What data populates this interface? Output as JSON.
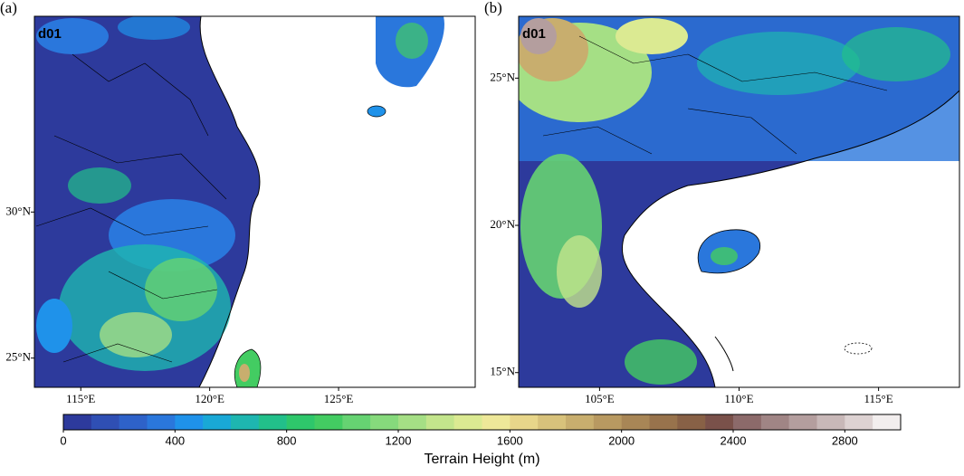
{
  "panels": [
    {
      "label": "(a)",
      "domain": "d01",
      "xlim": [
        113.2,
        130.3
      ],
      "ylim": [
        24.0,
        36.7
      ],
      "xticks": [
        {
          "value": 115,
          "label": "115°E"
        },
        {
          "value": 120,
          "label": "120°E"
        },
        {
          "value": 125,
          "label": "125°E"
        }
      ],
      "yticks": [
        {
          "value": 25,
          "label": "25°N"
        },
        {
          "value": 30,
          "label": "30°N"
        }
      ]
    },
    {
      "label": "(b)",
      "domain": "d01",
      "xlim": [
        102.1,
        117.9
      ],
      "ylim": [
        14.5,
        27.1
      ],
      "xticks": [
        {
          "value": 105,
          "label": "105°E"
        },
        {
          "value": 110,
          "label": "110°E"
        },
        {
          "value": 115,
          "label": "115°E"
        }
      ],
      "yticks": [
        {
          "value": 15,
          "label": "15°N"
        },
        {
          "value": 20,
          "label": "20°N"
        },
        {
          "value": 25,
          "label": "25°N"
        }
      ]
    }
  ],
  "colorbar": {
    "label": "Terrain Height (m)",
    "lim": [
      0,
      3000
    ],
    "ticks": [
      0,
      400,
      800,
      1200,
      1600,
      2000,
      2400,
      2800
    ],
    "colors": [
      "#2d3a9c",
      "#2f4fb4",
      "#2e62c9",
      "#2a77dc",
      "#1f92ea",
      "#19a8d6",
      "#1eb6b0",
      "#22c08a",
      "#2ec76b",
      "#43cc62",
      "#66d372",
      "#86da7c",
      "#a5df85",
      "#c3e58c",
      "#dbea92",
      "#eee899",
      "#e8d68a",
      "#d8c27b",
      "#c8ae6e",
      "#b89961",
      "#a88656",
      "#98734c",
      "#886146",
      "#7a514a",
      "#8c6a6a",
      "#a08585",
      "#b49e9e",
      "#c8b8b8",
      "#ddd2d2",
      "#f2eeee"
    ]
  }
}
